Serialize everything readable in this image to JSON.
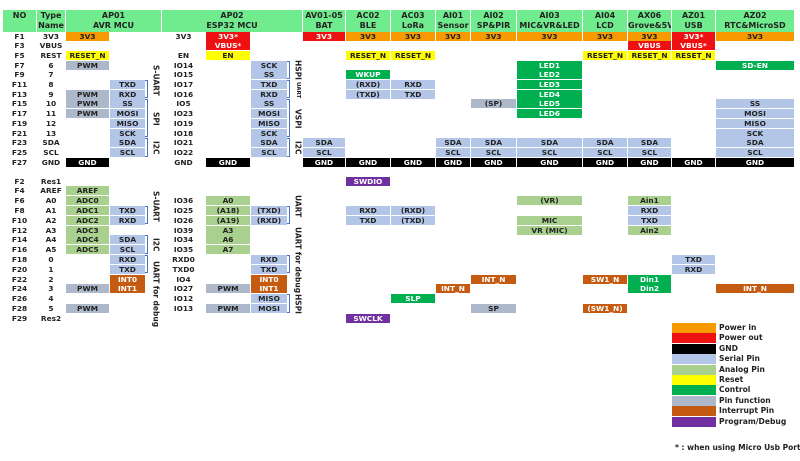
{
  "headers": [
    {
      "id": "no",
      "lines": [
        "NO",
        ""
      ]
    },
    {
      "id": "type",
      "lines": [
        "Type",
        "Name"
      ]
    },
    {
      "id": "ap01",
      "lines": [
        "AP01",
        "AVR MCU"
      ]
    },
    {
      "id": "ap02",
      "lines": [
        "AP02",
        "ESP32 MCU"
      ]
    },
    {
      "id": "av",
      "lines": [
        "AV01-05",
        "BAT"
      ]
    },
    {
      "id": "ac2",
      "lines": [
        "AC02",
        "BLE"
      ]
    },
    {
      "id": "ac3",
      "lines": [
        "AC03",
        "LoRa"
      ]
    },
    {
      "id": "ai1",
      "lines": [
        "AI01",
        "Sensor"
      ]
    },
    {
      "id": "ai2",
      "lines": [
        "AI02",
        "SP&PIR"
      ]
    },
    {
      "id": "ai3",
      "lines": [
        "AI03",
        "MIC&VR&LED"
      ]
    },
    {
      "id": "ai4",
      "lines": [
        "AI04",
        "LCD"
      ]
    },
    {
      "id": "ax6",
      "lines": [
        "AX06",
        "Grove&5V"
      ]
    },
    {
      "id": "az1",
      "lines": [
        "AZ01",
        "USB"
      ]
    },
    {
      "id": "az2",
      "lines": [
        "AZ02",
        "RTC&MicroSD"
      ]
    }
  ],
  "section1": [
    {
      "no": "F1",
      "type": "3V3",
      "esp": "3V3",
      "cells": {
        "a1": [
          "3V3",
          "power_in"
        ],
        "b1": [
          "3V3*",
          "power_out"
        ],
        "av": [
          "3V3",
          "power_out"
        ],
        "ac2": [
          "3V3",
          "power_in"
        ],
        "ac3": [
          "3V3",
          "power_in"
        ],
        "ai1": [
          "3V3",
          "power_in"
        ],
        "ai2": [
          "3V3",
          "power_in"
        ],
        "ai3": [
          "3V3",
          "power_in"
        ],
        "ai4": [
          "3V3",
          "power_in"
        ],
        "ax6": [
          "3V3",
          "power_in"
        ],
        "az1": [
          "3V3*",
          "power_out"
        ],
        "az2": [
          "3V3",
          "power_in"
        ]
      }
    },
    {
      "no": "F3",
      "type": "VBUS",
      "esp": "",
      "cells": {
        "b1": [
          "VBUS*",
          "power_out"
        ],
        "ax6": [
          "VBUS",
          "power_out"
        ],
        "az1": [
          "VBUS*",
          "power_out"
        ]
      }
    },
    {
      "no": "F5",
      "type": "REST",
      "esp": "EN",
      "cells": {
        "a1": [
          "RESET_N",
          "reset"
        ],
        "b1": [
          "EN",
          "reset"
        ],
        "ac2": [
          "RESET_N",
          "reset"
        ],
        "ac3": [
          "RESET_N",
          "reset"
        ],
        "ai4": [
          "RESET_N",
          "reset"
        ],
        "ax6": [
          "RESET_N",
          "reset"
        ],
        "az1": [
          "RESET_N",
          "reset"
        ]
      }
    },
    {
      "no": "F7",
      "type": "6",
      "esp": "IO14",
      "cells": {
        "a1": [
          "PWM",
          "pinfn"
        ],
        "b2": [
          "SCK",
          "serial"
        ],
        "ai3": [
          "LED1",
          "control"
        ],
        "az2": [
          "SD-EN",
          "control"
        ]
      }
    },
    {
      "no": "F9",
      "type": "7",
      "esp": "IO15",
      "cells": {
        "b2": [
          "SS",
          "serial"
        ],
        "ac2": [
          "WKUP",
          "control"
        ],
        "ai3": [
          "LED2",
          "control"
        ]
      }
    },
    {
      "no": "F11",
      "type": "8",
      "esp": "IO17",
      "cells": {
        "a2": [
          "TXD",
          "serial"
        ],
        "b2": [
          "TXD",
          "serial"
        ],
        "ac2": [
          "(RXD)",
          "serial"
        ],
        "ac3": [
          "RXD",
          "serial"
        ],
        "ai3": [
          "LED3",
          "control"
        ]
      }
    },
    {
      "no": "F13",
      "type": "9",
      "esp": "IO16",
      "cells": {
        "a1": [
          "PWM",
          "pinfn"
        ],
        "a2": [
          "RXD",
          "serial"
        ],
        "b2": [
          "RXD",
          "serial"
        ],
        "ac2": [
          "(TXD)",
          "serial"
        ],
        "ac3": [
          "TXD",
          "serial"
        ],
        "ai3": [
          "LED4",
          "control"
        ]
      }
    },
    {
      "no": "F15",
      "type": "10",
      "esp": "IO5",
      "cells": {
        "a1": [
          "PWM",
          "pinfn"
        ],
        "a2": [
          "SS",
          "serial"
        ],
        "b2": [
          "SS",
          "serial"
        ],
        "ai2": [
          "(SP)",
          "pinfn"
        ],
        "ai3": [
          "LED5",
          "control"
        ],
        "az2": [
          "SS",
          "serial"
        ]
      }
    },
    {
      "no": "F17",
      "type": "11",
      "esp": "IO23",
      "cells": {
        "a1": [
          "PWM",
          "pinfn"
        ],
        "a2": [
          "MOSI",
          "serial"
        ],
        "b2": [
          "MOSI",
          "serial"
        ],
        "ai3": [
          "LED6",
          "control"
        ],
        "az2": [
          "MOSI",
          "serial"
        ]
      }
    },
    {
      "no": "F19",
      "type": "12",
      "esp": "IO19",
      "cells": {
        "a2": [
          "MISO",
          "serial"
        ],
        "b2": [
          "MISO",
          "serial"
        ],
        "az2": [
          "MISO",
          "serial"
        ]
      }
    },
    {
      "no": "F21",
      "type": "13",
      "esp": "IO18",
      "cells": {
        "a2": [
          "SCK",
          "serial"
        ],
        "b2": [
          "SCK",
          "serial"
        ],
        "az2": [
          "SCK",
          "serial"
        ]
      }
    },
    {
      "no": "F23",
      "type": "SDA",
      "esp": "IO21",
      "cells": {
        "a2": [
          "SDA",
          "serial"
        ],
        "b2": [
          "SDA",
          "serial"
        ],
        "av": [
          "SDA",
          "serial"
        ],
        "ai1": [
          "SDA",
          "serial"
        ],
        "ai2": [
          "SDA",
          "serial"
        ],
        "ai3": [
          "SDA",
          "serial"
        ],
        "ai4": [
          "SDA",
          "serial"
        ],
        "ax6": [
          "SDA",
          "serial"
        ],
        "az2": [
          "SDA",
          "serial"
        ]
      }
    },
    {
      "no": "F25",
      "type": "SCL",
      "esp": "IO22",
      "cells": {
        "a2": [
          "SCL",
          "serial"
        ],
        "b2": [
          "SCL",
          "serial"
        ],
        "av": [
          "SCL",
          "serial"
        ],
        "ai1": [
          "SCL",
          "serial"
        ],
        "ai2": [
          "SCL",
          "serial"
        ],
        "ai3": [
          "SCL",
          "serial"
        ],
        "ai4": [
          "SCL",
          "serial"
        ],
        "ax6": [
          "SCL",
          "serial"
        ],
        "az2": [
          "SCL",
          "serial"
        ]
      }
    },
    {
      "no": "F27",
      "type": "GND",
      "esp": "GND",
      "cells": {
        "a1": [
          "GND",
          "gnd"
        ],
        "b1": [
          "GND",
          "gnd"
        ],
        "av": [
          "GND",
          "gnd"
        ],
        "ac2": [
          "GND",
          "gnd"
        ],
        "ac3": [
          "GND",
          "gnd"
        ],
        "ai1": [
          "GND",
          "gnd"
        ],
        "ai2": [
          "GND",
          "gnd"
        ],
        "ai3": [
          "GND",
          "gnd"
        ],
        "ai4": [
          "GND",
          "gnd"
        ],
        "ax6": [
          "GND",
          "gnd"
        ],
        "az1": [
          "GND",
          "gnd"
        ],
        "az2": [
          "GND",
          "gnd"
        ]
      }
    }
  ],
  "section2": [
    {
      "no": "F2",
      "type": "Res1",
      "esp": "",
      "cells": {
        "ac2": [
          "SWDIO",
          "program"
        ]
      }
    },
    {
      "no": "F4",
      "type": "AREF",
      "esp": "",
      "cells": {
        "a1": [
          "AREF",
          "analog"
        ]
      }
    },
    {
      "no": "F6",
      "type": "A0",
      "esp": "IO36",
      "cells": {
        "a1": [
          "ADC0",
          "analog"
        ],
        "b1": [
          "A0",
          "analog"
        ],
        "ai3": [
          "(VR)",
          "analog"
        ],
        "ax6": [
          "Ain1",
          "analog"
        ]
      }
    },
    {
      "no": "F8",
      "type": "A1",
      "esp": "IO25",
      "cells": {
        "a1": [
          "ADC1",
          "analog"
        ],
        "a2": [
          "TXD",
          "serial"
        ],
        "b1": [
          "(A18)",
          "analog"
        ],
        "b2": [
          "(TXD)",
          "serial"
        ],
        "ac2": [
          "RXD",
          "serial"
        ],
        "ac3": [
          "(RXD)",
          "serial"
        ],
        "ax6": [
          "RXD",
          "serial"
        ]
      }
    },
    {
      "no": "F10",
      "type": "A2",
      "esp": "IO26",
      "cells": {
        "a1": [
          "ADC2",
          "analog"
        ],
        "a2": [
          "RXD",
          "serial"
        ],
        "b1": [
          "(A19)",
          "analog"
        ],
        "b2": [
          "(RXD)",
          "serial"
        ],
        "ac2": [
          "TXD",
          "serial"
        ],
        "ac3": [
          "(TXD)",
          "serial"
        ],
        "ai3": [
          "MIC",
          "analog"
        ],
        "ax6": [
          "TXD",
          "serial"
        ]
      }
    },
    {
      "no": "F12",
      "type": "A3",
      "esp": "IO39",
      "cells": {
        "a1": [
          "ADC3",
          "analog"
        ],
        "b1": [
          "A3",
          "analog"
        ],
        "ai3": [
          "VR (MIC)",
          "analog"
        ],
        "ax6": [
          "Ain2",
          "analog"
        ]
      }
    },
    {
      "no": "F14",
      "type": "A4",
      "esp": "IO34",
      "cells": {
        "a1": [
          "ADC4",
          "analog"
        ],
        "a2": [
          "SDA",
          "serial"
        ],
        "b1": [
          "A6",
          "analog"
        ]
      }
    },
    {
      "no": "F16",
      "type": "A5",
      "esp": "IO35",
      "cells": {
        "a1": [
          "ADC5",
          "analog"
        ],
        "a2": [
          "SCL",
          "serial"
        ],
        "b1": [
          "A7",
          "analog"
        ]
      }
    },
    {
      "no": "F18",
      "type": "0",
      "esp": "RXD0",
      "cells": {
        "a2": [
          "RXD",
          "serial"
        ],
        "b2": [
          "RXD",
          "serial"
        ],
        "az1": [
          "TXD",
          "serial"
        ]
      }
    },
    {
      "no": "F20",
      "type": "1",
      "esp": "TXD0",
      "cells": {
        "a2": [
          "TXD",
          "serial"
        ],
        "b2": [
          "TXD",
          "serial"
        ],
        "az1": [
          "RXD",
          "serial"
        ]
      }
    },
    {
      "no": "F22",
      "type": "2",
      "esp": "IO4",
      "cells": {
        "a2": [
          "INT0",
          "interrupt"
        ],
        "b2": [
          "INT0",
          "interrupt"
        ],
        "ai2": [
          "INT_N",
          "interrupt"
        ],
        "ai4": [
          "SW1_N",
          "interrupt"
        ],
        "ax6": [
          "Din1",
          "control"
        ]
      }
    },
    {
      "no": "F24",
      "type": "3",
      "esp": "IO27",
      "cells": {
        "a1": [
          "PWM",
          "pinfn"
        ],
        "a2": [
          "INT1",
          "interrupt"
        ],
        "b1": [
          "PWM",
          "pinfn"
        ],
        "b2": [
          "INT1",
          "interrupt"
        ],
        "ai1": [
          "INT_N",
          "interrupt"
        ],
        "ax6": [
          "Din2",
          "control"
        ],
        "az2": [
          "INT_N",
          "interrupt"
        ]
      }
    },
    {
      "no": "F26",
      "type": "4",
      "esp": "IO12",
      "cells": {
        "b2": [
          "MISO",
          "serial"
        ],
        "ac3": [
          "SLP",
          "control"
        ]
      }
    },
    {
      "no": "F28",
      "type": "5",
      "esp": "IO13",
      "cells": {
        "a1": [
          "PWM",
          "pinfn"
        ],
        "b1": [
          "PWM",
          "pinfn"
        ],
        "b2": [
          "MOSI",
          "serial"
        ],
        "ai2": [
          "SP",
          "pinfn"
        ],
        "ai4": [
          "(SW1_N)",
          "interrupt"
        ]
      }
    },
    {
      "no": "F29",
      "type": "Res2",
      "esp": "",
      "cells": {
        "ac2": [
          "SWCLK",
          "program"
        ]
      }
    }
  ],
  "group_labels": {
    "s1_ap01_suart": "S-UART",
    "s1_ap01_spi": "SPI",
    "s1_ap01_i2c": "I2C",
    "s1_ap02_hspi": "HSPI",
    "s1_ap02_uart": "UART",
    "s1_ap02_vspi": "VSPI",
    "s1_ap02_i2c": "I2C",
    "s2_ap01_suart": "S-UART",
    "s2_ap01_i2c": "I2C",
    "s2_ap01_uartdbg": "UART for debug",
    "s2_ap02_uart": "UART",
    "s2_ap02_uartdbg": "UART for debug",
    "s2_ap02_hspi": "HSPI"
  },
  "legend": [
    {
      "kind": "power_in",
      "label": "Power in",
      "color": "#f79a00"
    },
    {
      "kind": "power_out",
      "label": "Power out",
      "color": "#ee1111"
    },
    {
      "kind": "gnd",
      "label": "GND",
      "color": "#000000"
    },
    {
      "kind": "serial",
      "label": "Serial Pin",
      "color": "#b4c6e7"
    },
    {
      "kind": "analog",
      "label": "Analog Pin",
      "color": "#a9d08e"
    },
    {
      "kind": "reset",
      "label": "Reset",
      "color": "#ffff00"
    },
    {
      "kind": "control",
      "label": "Control",
      "color": "#00b050"
    },
    {
      "kind": "pinfn",
      "label": "Pin function",
      "color": "#adb9ca"
    },
    {
      "kind": "interrupt",
      "label": "Interrupt Pin",
      "color": "#c55a11"
    },
    {
      "kind": "program",
      "label": "Program/Debug",
      "color": "#7030a0"
    }
  ],
  "footnote": "* : when using Micro Usb Port"
}
